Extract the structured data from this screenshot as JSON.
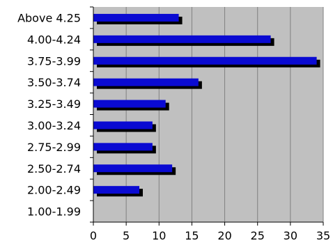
{
  "chart_data": {
    "type": "bar",
    "orientation": "horizontal",
    "categories": [
      "Above 4.25",
      "4.00-4.24",
      "3.75-3.99",
      "3.50-3.74",
      "3.25-3.49",
      "3.00-3.24",
      "2.75-2.99",
      "2.50-2.74",
      "2.00-2.49",
      "1.00-1.99"
    ],
    "series": [
      {
        "values": [
          13,
          27,
          34,
          16,
          11,
          9,
          9,
          12,
          7,
          0
        ]
      }
    ],
    "x_ticks": [
      "0",
      "5",
      "10",
      "15",
      "20",
      "25",
      "30",
      "35"
    ],
    "xlim": [
      0,
      35
    ],
    "grid": "vertical",
    "legend": "none",
    "colors": {
      "bar": "#0a0ad2",
      "bar_shadow": "#000000",
      "plot_background": "#c0c0c0",
      "gridline": "#808080",
      "axis": "#000000"
    }
  }
}
